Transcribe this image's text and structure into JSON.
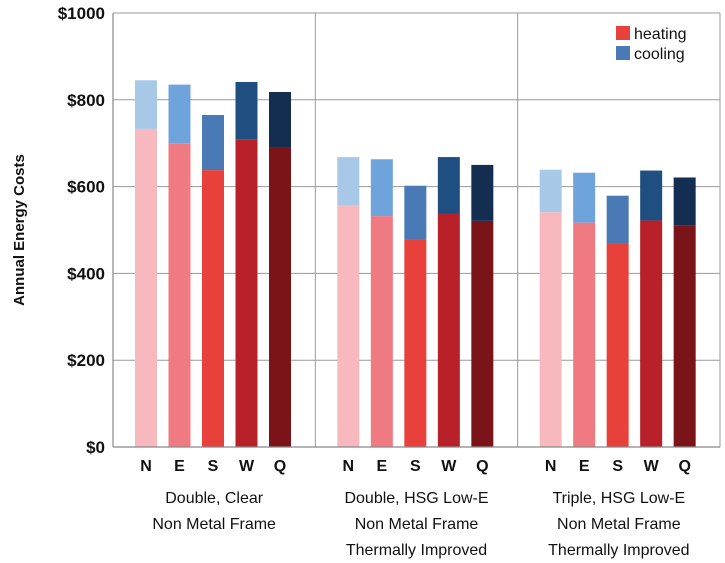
{
  "chart_data": {
    "type": "bar",
    "stacked": true,
    "ylabel": "Annual Energy Costs",
    "ylim": [
      0,
      1000
    ],
    "yticks": [
      "$0",
      "$200",
      "$400",
      "$600",
      "$800",
      "$1000"
    ],
    "tick_values": [
      0,
      200,
      400,
      600,
      800,
      1000
    ],
    "grid": true,
    "legend_position": "top-right",
    "legend": [
      {
        "name": "heating",
        "color": "#e8403a"
      },
      {
        "name": "cooling",
        "color": "#4a7ab5"
      }
    ],
    "groups": [
      {
        "label_lines": [
          "Double, Clear",
          "Non Metal Frame"
        ],
        "bars": [
          {
            "category": "N",
            "heating": 733,
            "cooling": 112,
            "heating_color": "#f7b8be",
            "cooling_color": "#a8c8e8"
          },
          {
            "category": "E",
            "heating": 700,
            "cooling": 135,
            "heating_color": "#f07a82",
            "cooling_color": "#6fa3dc"
          },
          {
            "category": "S",
            "heating": 638,
            "cooling": 127,
            "heating_color": "#e8403a",
            "cooling_color": "#4a7ab5"
          },
          {
            "category": "W",
            "heating": 708,
            "cooling": 133,
            "heating_color": "#b8202a",
            "cooling_color": "#1e4f80"
          },
          {
            "category": "Q",
            "heating": 690,
            "cooling": 128,
            "heating_color": "#7a1418",
            "cooling_color": "#142e52"
          }
        ]
      },
      {
        "label_lines": [
          "Double, HSG Low-E",
          "Non Metal Frame",
          "Thermally Improved"
        ],
        "bars": [
          {
            "category": "N",
            "heating": 556,
            "cooling": 112,
            "heating_color": "#f7b8be",
            "cooling_color": "#a8c8e8"
          },
          {
            "category": "E",
            "heating": 532,
            "cooling": 131,
            "heating_color": "#f07a82",
            "cooling_color": "#6fa3dc"
          },
          {
            "category": "S",
            "heating": 478,
            "cooling": 124,
            "heating_color": "#e8403a",
            "cooling_color": "#4a7ab5"
          },
          {
            "category": "W",
            "heating": 538,
            "cooling": 130,
            "heating_color": "#b8202a",
            "cooling_color": "#1e4f80"
          },
          {
            "category": "Q",
            "heating": 521,
            "cooling": 129,
            "heating_color": "#7a1418",
            "cooling_color": "#142e52"
          }
        ]
      },
      {
        "label_lines": [
          "Triple, HSG Low-E",
          "Non Metal Frame",
          "Thermally Improved"
        ],
        "bars": [
          {
            "category": "N",
            "heating": 541,
            "cooling": 98,
            "heating_color": "#f7b8be",
            "cooling_color": "#a8c8e8"
          },
          {
            "category": "E",
            "heating": 517,
            "cooling": 115,
            "heating_color": "#f07a82",
            "cooling_color": "#6fa3dc"
          },
          {
            "category": "S",
            "heating": 469,
            "cooling": 110,
            "heating_color": "#e8403a",
            "cooling_color": "#4a7ab5"
          },
          {
            "category": "W",
            "heating": 522,
            "cooling": 115,
            "heating_color": "#b8202a",
            "cooling_color": "#1e4f80"
          },
          {
            "category": "Q",
            "heating": 510,
            "cooling": 111,
            "heating_color": "#7a1418",
            "cooling_color": "#142e52"
          }
        ]
      }
    ]
  }
}
